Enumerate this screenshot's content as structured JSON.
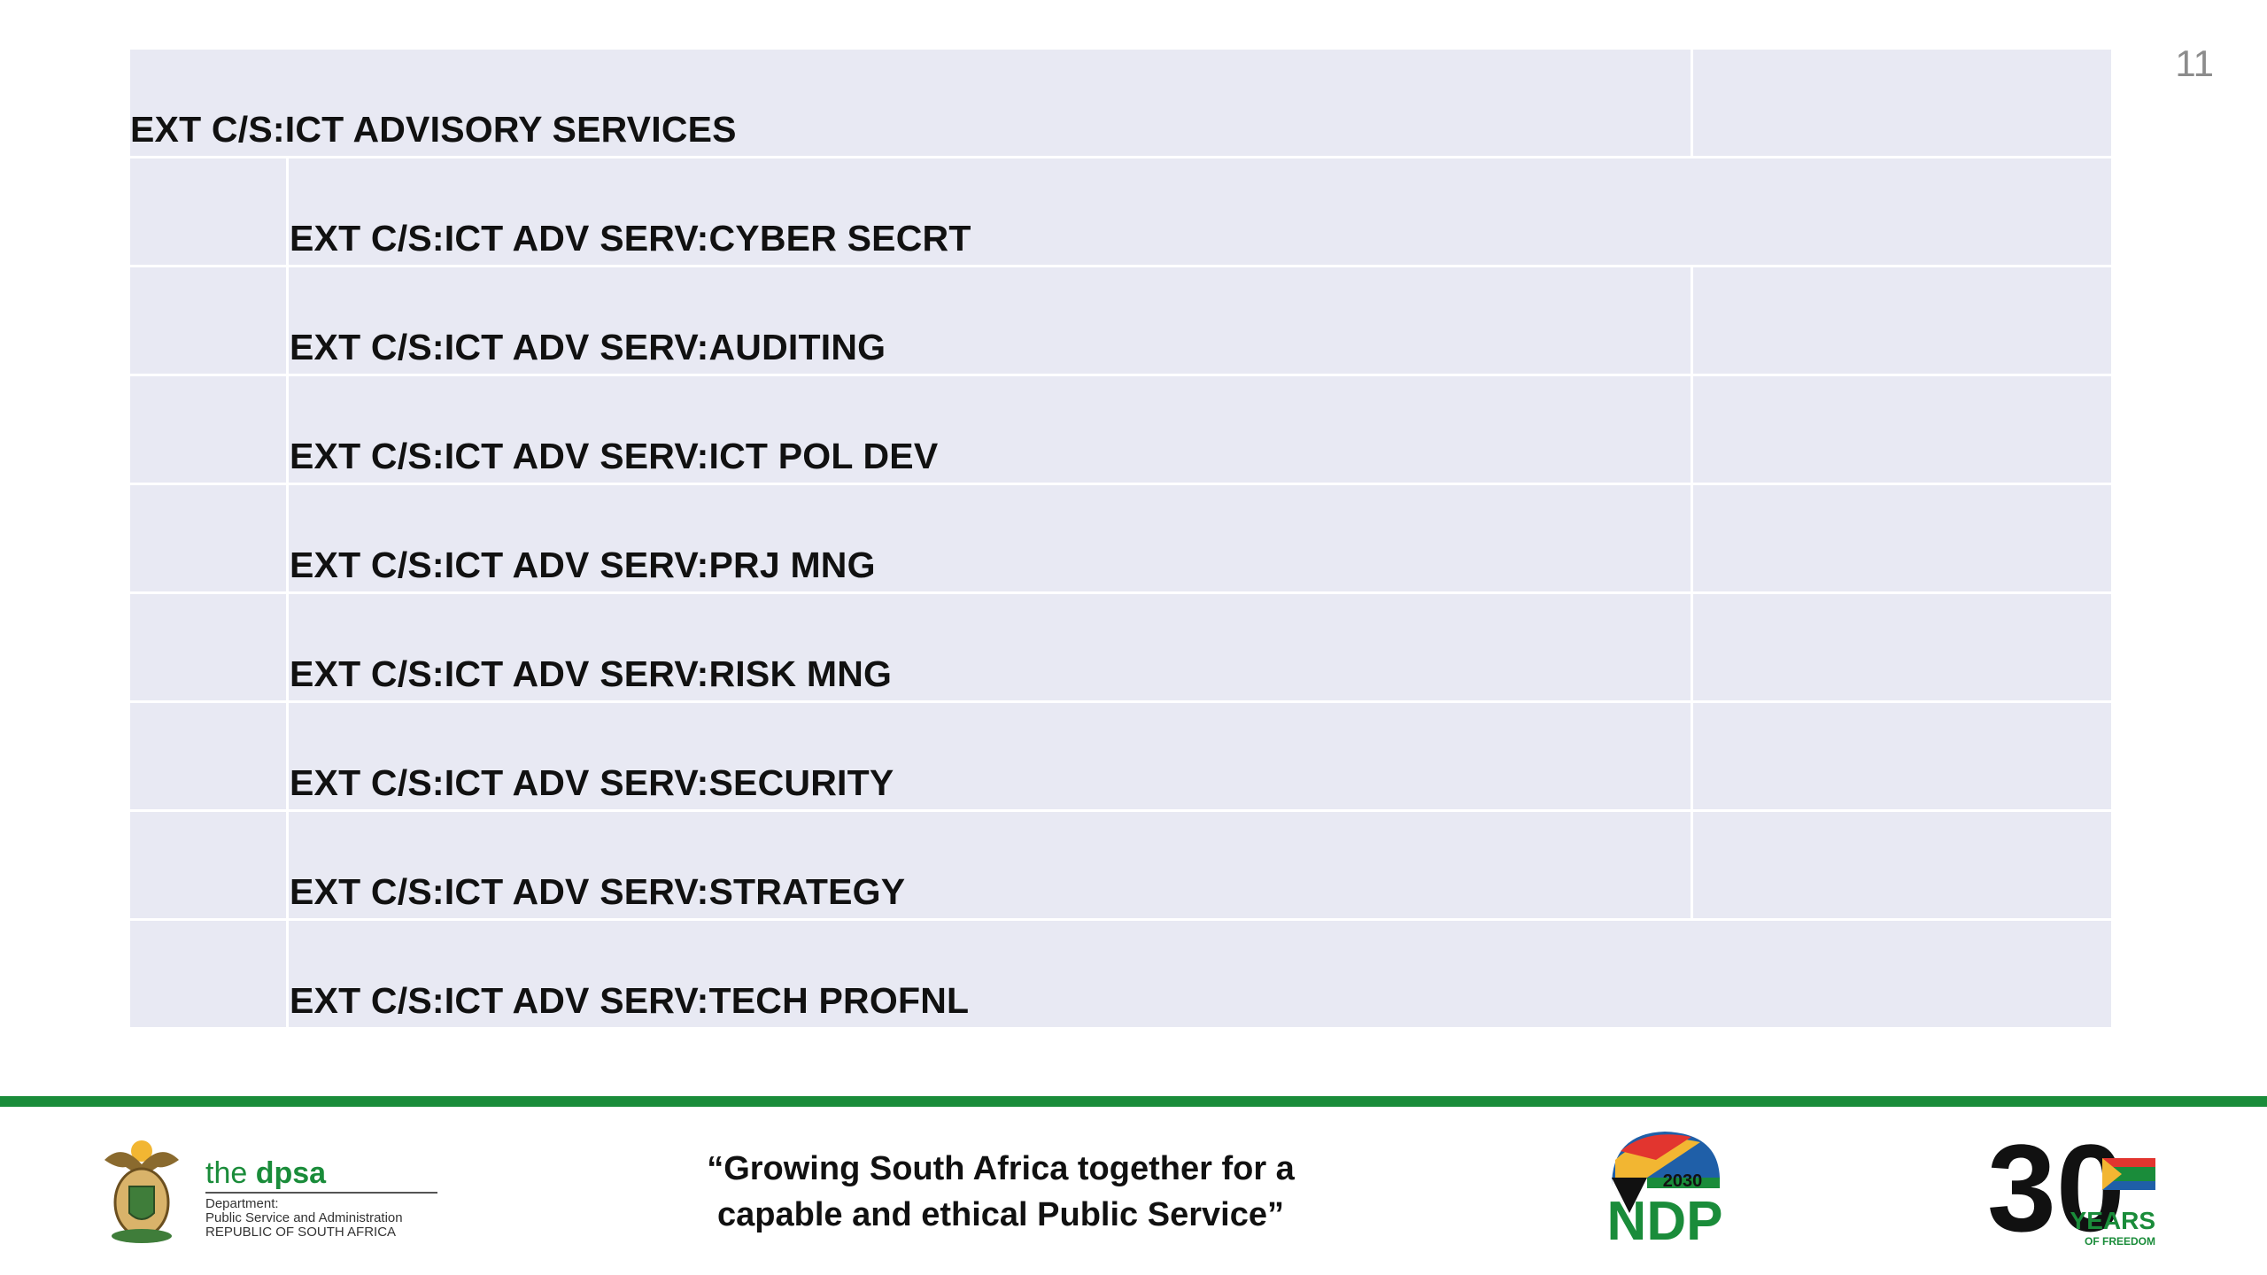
{
  "page_number": "11",
  "rows": [
    {
      "label": "EXT C/S:ICT ADVISORY SERVICES",
      "level": 0
    },
    {
      "label": "EXT C/S:ICT ADV SERV:CYBER SECRT",
      "level": 1
    },
    {
      "label": "EXT C/S:ICT ADV SERV:AUDITING",
      "level": 1
    },
    {
      "label": "EXT C/S:ICT ADV SERV:ICT POL DEV",
      "level": 1
    },
    {
      "label": "EXT C/S:ICT ADV SERV:PRJ MNG",
      "level": 1
    },
    {
      "label": "EXT C/S:ICT ADV SERV:RISK MNG",
      "level": 1
    },
    {
      "label": "EXT C/S:ICT ADV SERV:SECURITY",
      "level": 1
    },
    {
      "label": "EXT C/S:ICT ADV SERV:STRATEGY",
      "level": 1
    },
    {
      "label": "EXT C/S:ICT ADV SERV:TECH PROFNL",
      "level": 1
    }
  ],
  "footer": {
    "dpsa": {
      "the": "the",
      "name": "dpsa",
      "line1": "Department:",
      "line2": "Public Service and Administration",
      "line3": "REPUBLIC OF SOUTH AFRICA"
    },
    "slogan_line1": "“Growing South Africa together for a",
    "slogan_line2": "capable and ethical Public Service”",
    "ndp": {
      "year": "2030",
      "name": "NDP"
    },
    "years": {
      "number": "30",
      "word": "YEARS",
      "sub": "OF FREEDOM"
    }
  },
  "colors": {
    "row_background": "#e8e9f3",
    "footer_bar": "#1a8c3a",
    "dpsa_green": "#1a8c3a"
  }
}
